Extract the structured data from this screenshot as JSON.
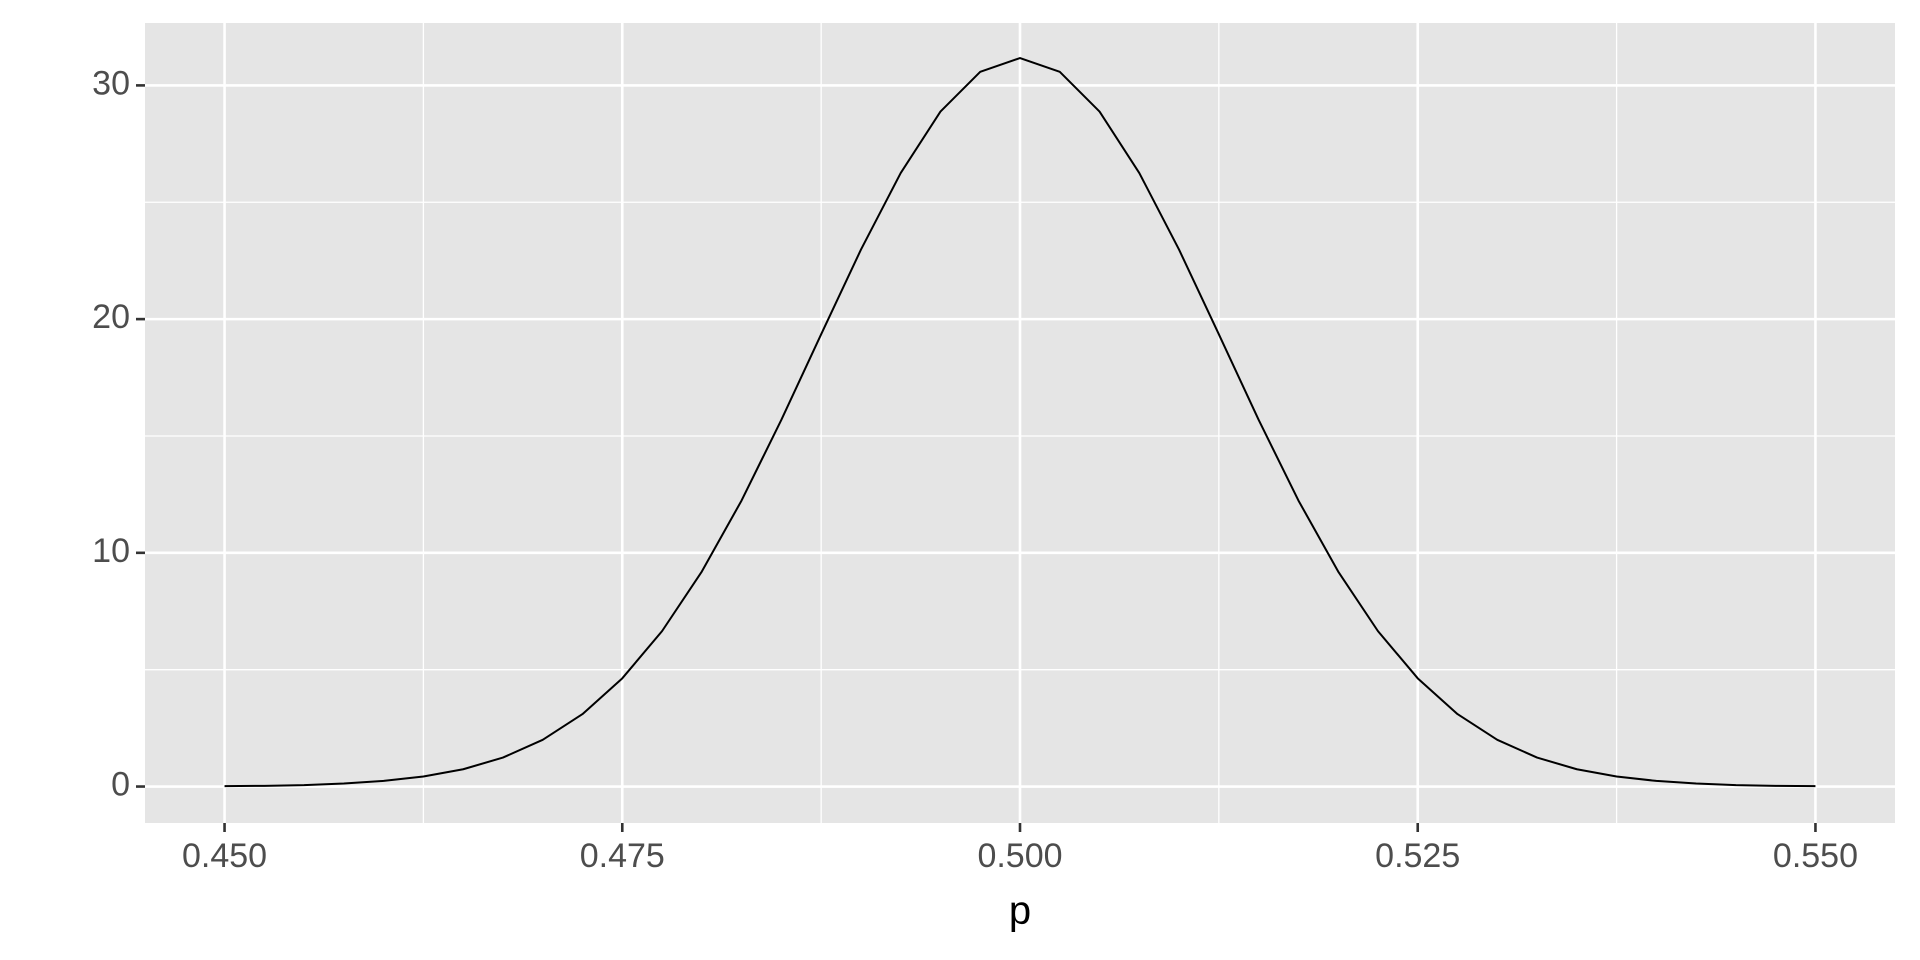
{
  "chart_data": {
    "type": "line",
    "x_label": "p",
    "x": [
      0.45,
      0.4525,
      0.455,
      0.4575,
      0.46,
      0.4625,
      0.465,
      0.4675,
      0.47,
      0.4725,
      0.475,
      0.4775,
      0.48,
      0.4825,
      0.485,
      0.4875,
      0.49,
      0.4925,
      0.495,
      0.4975,
      0.5,
      0.5025,
      0.505,
      0.5075,
      0.51,
      0.5125,
      0.515,
      0.5175,
      0.52,
      0.5225,
      0.525,
      0.5275,
      0.53,
      0.5325,
      0.535,
      0.5375,
      0.54,
      0.5425,
      0.545,
      0.5475,
      0.55
    ],
    "series": [
      {
        "color": "#000000",
        "values": [
          0.02,
          0.03,
          0.06,
          0.13,
          0.24,
          0.43,
          0.74,
          1.24,
          2.0,
          3.1,
          4.63,
          6.65,
          9.2,
          12.24,
          15.69,
          19.35,
          22.97,
          26.25,
          28.88,
          30.58,
          31.17,
          30.58,
          28.88,
          26.25,
          22.97,
          19.35,
          15.69,
          12.24,
          9.2,
          6.65,
          4.63,
          3.1,
          2.0,
          1.24,
          0.74,
          0.43,
          0.24,
          0.13,
          0.06,
          0.03,
          0.02
        ]
      }
    ],
    "xlim": [
      0.445,
      0.555
    ],
    "ylim": [
      -1.56,
      32.67
    ],
    "xticks": [
      {
        "value": 0.45,
        "label": "0.450"
      },
      {
        "value": 0.475,
        "label": "0.475"
      },
      {
        "value": 0.5,
        "label": "0.500"
      },
      {
        "value": 0.525,
        "label": "0.525"
      },
      {
        "value": 0.55,
        "label": "0.550"
      }
    ],
    "yticks": [
      0,
      10,
      20,
      30
    ],
    "x_minor_ticks": [
      0.4625,
      0.4875,
      0.5125,
      0.5375
    ],
    "y_minor_ticks": [
      5,
      15,
      25
    ],
    "grid": true,
    "panel_color": "#e5e5e5"
  }
}
